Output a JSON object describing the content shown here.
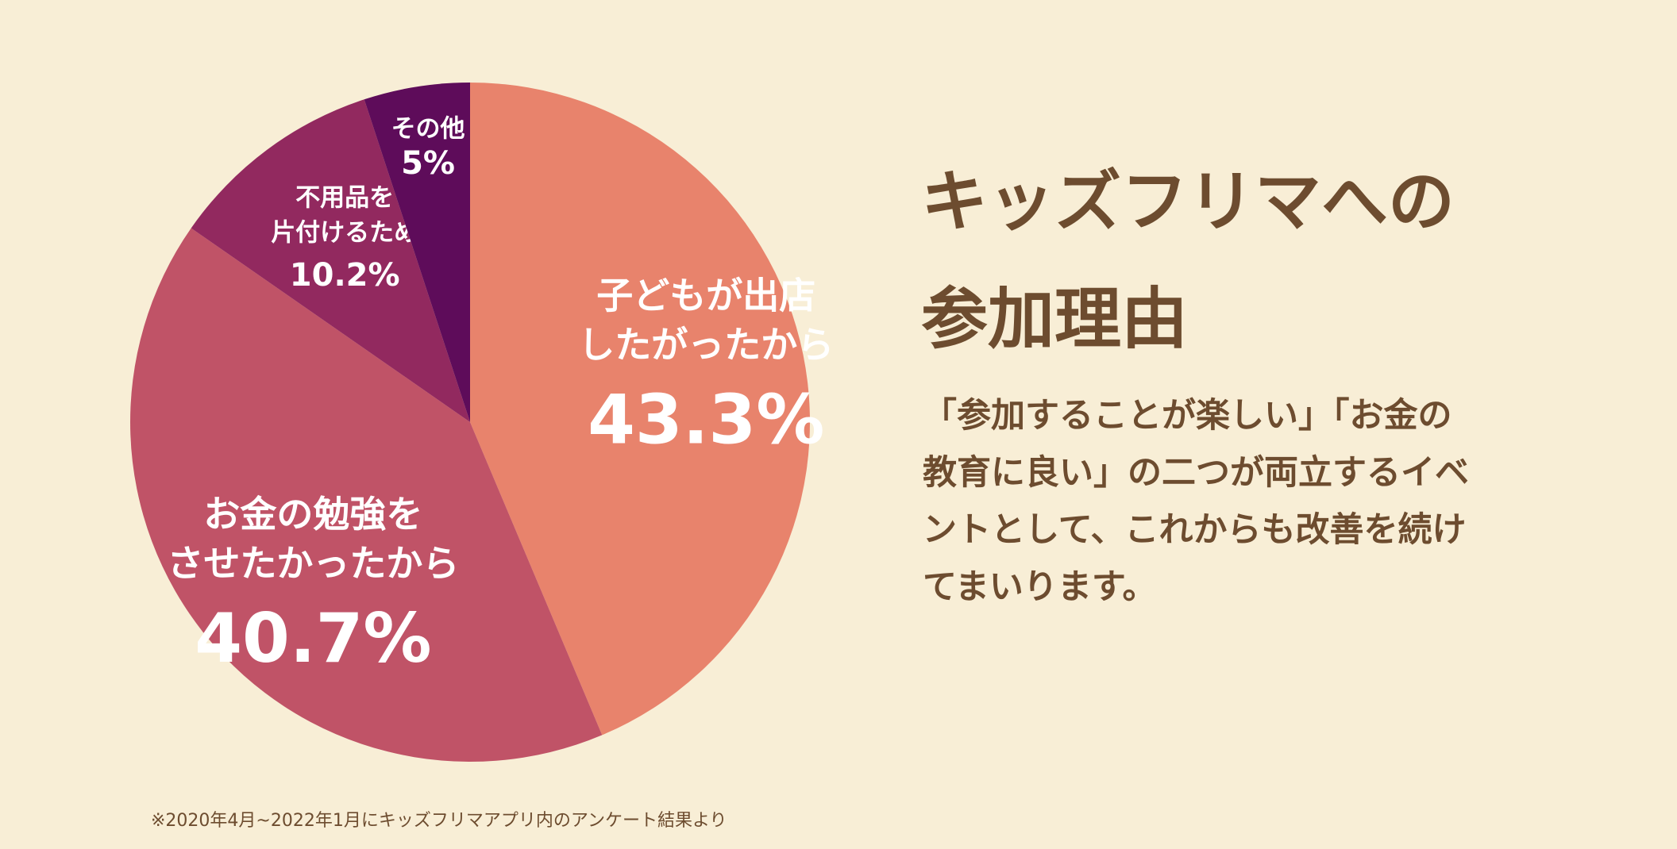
{
  "chart_data": {
    "type": "pie",
    "start": "top",
    "direction": "clockwise",
    "slices": [
      {
        "lines": [
          "子どもが出店",
          "したがったから"
        ],
        "value": 43.3,
        "display": "43.3%",
        "color": "#e8836c"
      },
      {
        "lines": [
          "お金の勉強を",
          "させたかったから"
        ],
        "value": 40.7,
        "display": "40.7%",
        "color": "#c05367"
      },
      {
        "lines": [
          "不用品を",
          "片付けるため"
        ],
        "value": 10.2,
        "display": "10.2%",
        "color": "#92295f"
      },
      {
        "lines": [
          "その他"
        ],
        "value": 5,
        "display": "5%",
        "color": "#5e0c5a"
      }
    ]
  },
  "title_lines": [
    "キッズフリマへの",
    "参加理由"
  ],
  "body_lines": [
    "「参加することが楽しい」「お金の",
    "教育に良い」の二つが両立するイベ",
    "ントとして、これからも改善を続け",
    "てまいります。"
  ],
  "footnote": "※2020年4月~2022年1月にキッズフリマアプリ内のアンケート結果より",
  "colors": {
    "background": "#f8eed6",
    "text": "#6d4c2f"
  }
}
